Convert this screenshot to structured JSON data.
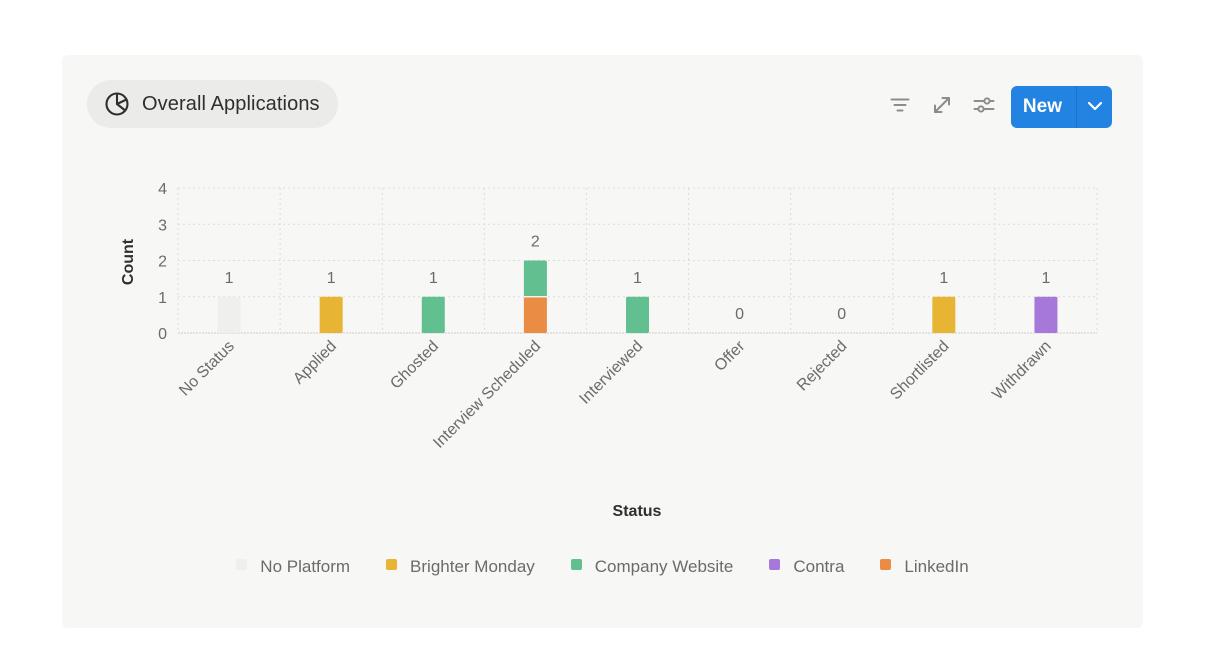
{
  "widget": {
    "title": "Overall Applications",
    "title_icon": "pie-chart-icon",
    "toolbar": {
      "filter_icon": "filter-icon",
      "expand_icon": "expand-icon",
      "settings_icon": "sliders-icon",
      "new_label": "New",
      "new_dropdown_icon": "chevron-down-icon"
    },
    "accent_color": "#2383e2"
  },
  "chart_data": {
    "type": "bar",
    "stacked": true,
    "title": "Overall Applications",
    "xlabel": "Status",
    "ylabel": "Count",
    "ylim": [
      0,
      4
    ],
    "yticks": [
      "0",
      "1",
      "2",
      "3",
      "4"
    ],
    "grid": true,
    "legend_position": "bottom",
    "categories": [
      "No Status",
      "Applied",
      "Ghosted",
      "Interview Scheduled",
      "Interviewed",
      "Offer",
      "Rejected",
      "Shortlisted",
      "Withdrawn"
    ],
    "totals": [
      "1",
      "1",
      "1",
      "2",
      "1",
      "0",
      "0",
      "1",
      "1"
    ],
    "series": [
      {
        "name": "No Platform",
        "color": "#efefee",
        "values": [
          1,
          0,
          0,
          0,
          0,
          0,
          0,
          0,
          0
        ]
      },
      {
        "name": "LinkedIn",
        "color": "#ea8c43",
        "values": [
          0,
          0,
          0,
          1,
          0,
          0,
          0,
          0,
          0
        ]
      },
      {
        "name": "Brighter Monday",
        "color": "#e8b433",
        "values": [
          0,
          1,
          0,
          0,
          0,
          0,
          0,
          1,
          0
        ]
      },
      {
        "name": "Company Website",
        "color": "#62bf8f",
        "values": [
          0,
          0,
          1,
          1,
          1,
          0,
          0,
          0,
          0
        ]
      },
      {
        "name": "Contra",
        "color": "#a678d9",
        "values": [
          0,
          0,
          0,
          0,
          0,
          0,
          0,
          0,
          1
        ]
      }
    ],
    "legend": [
      {
        "name": "No Platform",
        "color": "#efefee"
      },
      {
        "name": "Brighter Monday",
        "color": "#e8b433"
      },
      {
        "name": "Company Website",
        "color": "#62bf8f"
      },
      {
        "name": "Contra",
        "color": "#a678d9"
      },
      {
        "name": "LinkedIn",
        "color": "#ea8c43"
      }
    ]
  }
}
